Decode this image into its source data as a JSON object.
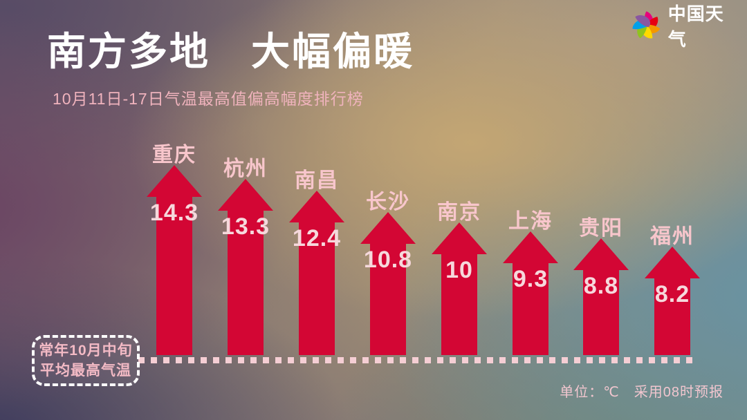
{
  "header": {
    "title": "南方多地　大幅偏暖",
    "subtitle": "10月11日-17日气温最高值偏高幅度排行榜"
  },
  "brand": {
    "name": "中国天气",
    "logo_icon": "pinwheel-icon",
    "logo_petal_colors": [
      "#e5007d",
      "#e60012",
      "#f39800",
      "#ffd900",
      "#8fc31f",
      "#00a0e9",
      "#8957a1"
    ]
  },
  "chart_data": {
    "type": "bar",
    "title": "10月11日-17日气温最高值偏高幅度排行榜",
    "categories": [
      "重庆",
      "杭州",
      "南昌",
      "长沙",
      "南京",
      "上海",
      "贵阳",
      "福州"
    ],
    "values": [
      14.3,
      13.3,
      12.4,
      10.8,
      10,
      9.3,
      8.8,
      8.2
    ],
    "unit": "℃",
    "bar_style": "up-arrow",
    "bar_color": "#d30634",
    "ylim": [
      0,
      15
    ],
    "baseline_annotation": "常年10月中旬平均最高气温",
    "grid": false,
    "legend": false
  },
  "baseline_box": {
    "line1": "常年10月中旬",
    "line2": "平均最高气温"
  },
  "footer": {
    "note": "单位：℃　采用08时预报"
  },
  "colors": {
    "arrow_red": "#d30634",
    "city_label_pink": "#f8c6cc",
    "value_pink": "#f6d8dc",
    "subtitle_pink": "#f0b3bd",
    "dotted_line_pink": "#f5ced4",
    "title_white": "#ffffff"
  }
}
